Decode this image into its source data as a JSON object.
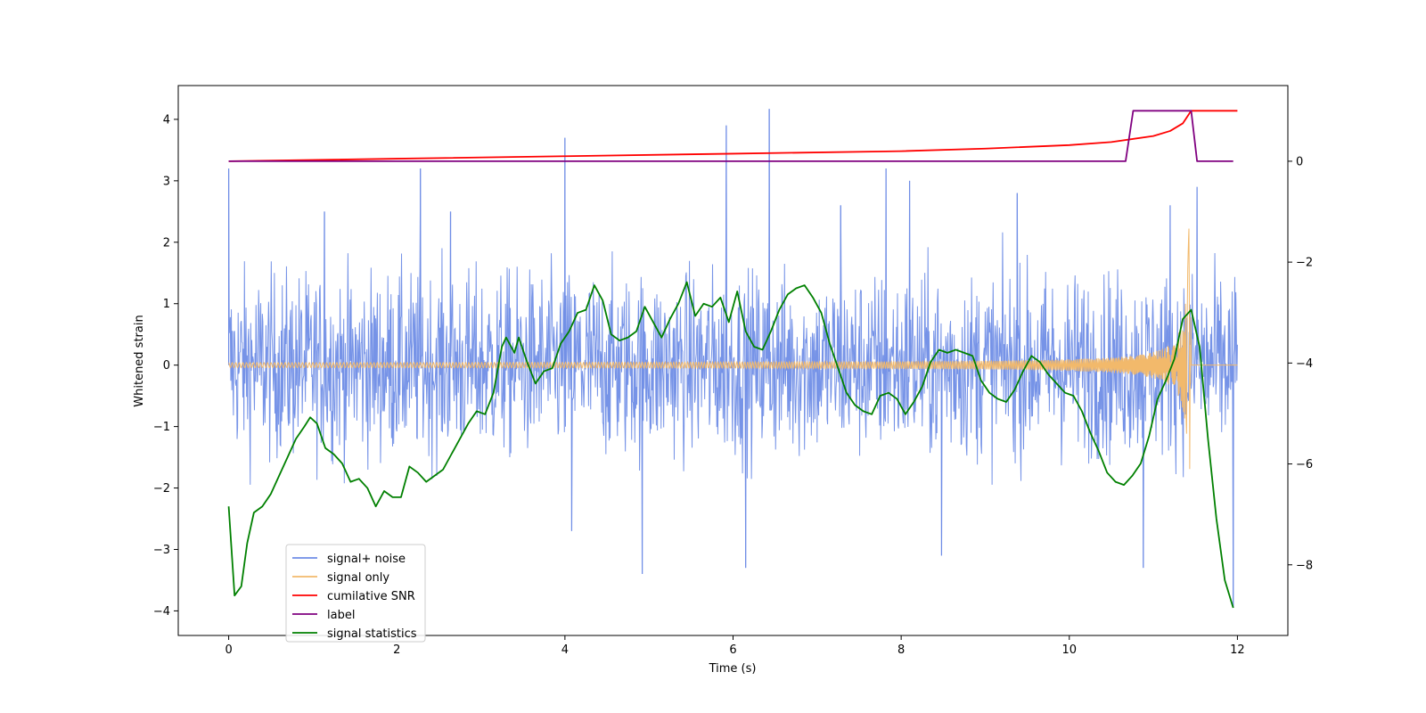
{
  "chart_data": {
    "type": "line",
    "title": "",
    "xlabel": "Time (s)",
    "ylabel": "Whitened strain",
    "y2label": "",
    "xlim": [
      -0.6,
      12.6
    ],
    "ylim": [
      -4.4,
      4.55
    ],
    "y2lim": [
      -9.4,
      1.5
    ],
    "xticks": [
      0,
      2,
      4,
      6,
      8,
      10,
      12
    ],
    "yticks": [
      -4,
      -3,
      -2,
      -1,
      0,
      1,
      2,
      3,
      4
    ],
    "y2ticks": [
      -8,
      -6,
      -4,
      -2,
      0
    ],
    "grid": false,
    "legend_position": "lower-left",
    "series": [
      {
        "name": "signal+ noise",
        "color": "#6f8de6",
        "axis": "left",
        "style": "noise band approx. ±1.9 with spikes",
        "spikes": [
          [
            0.0,
            3.2
          ],
          [
            1.14,
            2.5
          ],
          [
            2.28,
            3.2
          ],
          [
            2.64,
            2.5
          ],
          [
            4.0,
            3.7
          ],
          [
            4.08,
            -2.7
          ],
          [
            4.92,
            -3.4
          ],
          [
            5.92,
            3.9
          ],
          [
            6.15,
            -3.3
          ],
          [
            6.43,
            4.17
          ],
          [
            7.28,
            2.6
          ],
          [
            7.82,
            3.2
          ],
          [
            8.1,
            3.0
          ],
          [
            8.48,
            -3.1
          ],
          [
            9.38,
            2.8
          ],
          [
            10.88,
            -3.3
          ],
          [
            11.2,
            2.6
          ],
          [
            11.52,
            2.9
          ],
          [
            11.95,
            -3.95
          ]
        ],
        "points": [
          [
            0.0,
            3.2
          ],
          [
            1.14,
            2.5
          ],
          [
            2.28,
            3.2
          ],
          [
            2.64,
            2.5
          ],
          [
            4.0,
            3.7
          ],
          [
            4.08,
            -2.7
          ],
          [
            4.92,
            -3.4
          ],
          [
            5.92,
            3.9
          ],
          [
            6.15,
            -3.3
          ],
          [
            6.43,
            4.17
          ],
          [
            7.28,
            2.6
          ],
          [
            7.82,
            3.2
          ],
          [
            8.1,
            3.0
          ],
          [
            8.48,
            -3.1
          ],
          [
            9.38,
            2.8
          ],
          [
            10.88,
            -3.3
          ],
          [
            11.2,
            2.6
          ],
          [
            11.52,
            2.9
          ],
          [
            11.95,
            -3.95
          ]
        ]
      },
      {
        "name": "signal only",
        "color": "#f2b96b",
        "axis": "left",
        "style": "chirp oscillation growing to ±2.3 at t≈11.45 then flat 0",
        "points": [
          [
            0.0,
            0.0
          ],
          [
            8.0,
            0.08
          ],
          [
            10.0,
            0.2
          ],
          [
            11.0,
            0.8
          ],
          [
            11.4,
            2.3
          ],
          [
            11.45,
            0.0
          ],
          [
            12.0,
            0.0
          ]
        ]
      },
      {
        "name": "cumilative SNR",
        "color": "#ff0000",
        "axis": "right",
        "points": [
          [
            0.0,
            0.0
          ],
          [
            2.0,
            0.05
          ],
          [
            4.0,
            0.1
          ],
          [
            6.0,
            0.15
          ],
          [
            8.0,
            0.2
          ],
          [
            9.0,
            0.25
          ],
          [
            10.0,
            0.32
          ],
          [
            10.5,
            0.38
          ],
          [
            11.0,
            0.5
          ],
          [
            11.2,
            0.6
          ],
          [
            11.35,
            0.75
          ],
          [
            11.45,
            1.0
          ],
          [
            12.0,
            1.0
          ]
        ]
      },
      {
        "name": "label",
        "color": "#800080",
        "axis": "right",
        "points": [
          [
            0.0,
            0.0
          ],
          [
            10.67,
            0.0
          ],
          [
            10.76,
            1.0
          ],
          [
            11.45,
            1.0
          ],
          [
            11.52,
            0.0
          ],
          [
            11.95,
            0.0
          ]
        ]
      },
      {
        "name": "signal statistics",
        "color": "#008000",
        "axis": "left",
        "points": [
          [
            0.0,
            -2.3
          ],
          [
            0.07,
            -3.75
          ],
          [
            0.15,
            -3.6
          ],
          [
            0.22,
            -2.9
          ],
          [
            0.3,
            -2.4
          ],
          [
            0.4,
            -2.3
          ],
          [
            0.5,
            -2.1
          ],
          [
            0.6,
            -1.8
          ],
          [
            0.7,
            -1.5
          ],
          [
            0.8,
            -1.2
          ],
          [
            0.9,
            -1.0
          ],
          [
            0.97,
            -0.85
          ],
          [
            1.05,
            -0.95
          ],
          [
            1.15,
            -1.35
          ],
          [
            1.25,
            -1.45
          ],
          [
            1.35,
            -1.6
          ],
          [
            1.45,
            -1.9
          ],
          [
            1.55,
            -1.85
          ],
          [
            1.65,
            -2.0
          ],
          [
            1.75,
            -2.3
          ],
          [
            1.85,
            -2.05
          ],
          [
            1.95,
            -2.15
          ],
          [
            2.05,
            -2.15
          ],
          [
            2.15,
            -1.65
          ],
          [
            2.25,
            -1.75
          ],
          [
            2.35,
            -1.9
          ],
          [
            2.45,
            -1.8
          ],
          [
            2.55,
            -1.7
          ],
          [
            2.65,
            -1.45
          ],
          [
            2.75,
            -1.2
          ],
          [
            2.85,
            -0.95
          ],
          [
            2.95,
            -0.75
          ],
          [
            3.05,
            -0.8
          ],
          [
            3.15,
            -0.45
          ],
          [
            3.25,
            0.3
          ],
          [
            3.3,
            0.45
          ],
          [
            3.4,
            0.2
          ],
          [
            3.45,
            0.45
          ],
          [
            3.55,
            0.05
          ],
          [
            3.65,
            -0.3
          ],
          [
            3.75,
            -0.1
          ],
          [
            3.85,
            -0.05
          ],
          [
            3.95,
            0.35
          ],
          [
            4.05,
            0.55
          ],
          [
            4.15,
            0.85
          ],
          [
            4.25,
            0.9
          ],
          [
            4.35,
            1.3
          ],
          [
            4.45,
            1.05
          ],
          [
            4.55,
            0.5
          ],
          [
            4.65,
            0.4
          ],
          [
            4.75,
            0.45
          ],
          [
            4.85,
            0.55
          ],
          [
            4.95,
            0.95
          ],
          [
            5.05,
            0.7
          ],
          [
            5.15,
            0.45
          ],
          [
            5.25,
            0.75
          ],
          [
            5.35,
            1.0
          ],
          [
            5.45,
            1.35
          ],
          [
            5.55,
            0.8
          ],
          [
            5.65,
            1.0
          ],
          [
            5.75,
            0.95
          ],
          [
            5.85,
            1.1
          ],
          [
            5.95,
            0.7
          ],
          [
            6.05,
            1.2
          ],
          [
            6.15,
            0.55
          ],
          [
            6.25,
            0.3
          ],
          [
            6.35,
            0.25
          ],
          [
            6.45,
            0.55
          ],
          [
            6.55,
            0.9
          ],
          [
            6.65,
            1.15
          ],
          [
            6.75,
            1.25
          ],
          [
            6.85,
            1.3
          ],
          [
            6.95,
            1.1
          ],
          [
            7.05,
            0.85
          ],
          [
            7.15,
            0.35
          ],
          [
            7.25,
            -0.05
          ],
          [
            7.35,
            -0.45
          ],
          [
            7.45,
            -0.65
          ],
          [
            7.55,
            -0.75
          ],
          [
            7.65,
            -0.8
          ],
          [
            7.75,
            -0.5
          ],
          [
            7.85,
            -0.45
          ],
          [
            7.95,
            -0.55
          ],
          [
            8.05,
            -0.8
          ],
          [
            8.15,
            -0.6
          ],
          [
            8.25,
            -0.35
          ],
          [
            8.35,
            0.05
          ],
          [
            8.45,
            0.25
          ],
          [
            8.55,
            0.2
          ],
          [
            8.65,
            0.25
          ],
          [
            8.75,
            0.2
          ],
          [
            8.85,
            0.15
          ],
          [
            8.95,
            -0.25
          ],
          [
            9.05,
            -0.45
          ],
          [
            9.15,
            -0.55
          ],
          [
            9.25,
            -0.6
          ],
          [
            9.35,
            -0.4
          ],
          [
            9.45,
            -0.1
          ],
          [
            9.55,
            0.15
          ],
          [
            9.65,
            0.05
          ],
          [
            9.75,
            -0.15
          ],
          [
            9.85,
            -0.3
          ],
          [
            9.95,
            -0.45
          ],
          [
            10.05,
            -0.5
          ],
          [
            10.15,
            -0.75
          ],
          [
            10.25,
            -1.1
          ],
          [
            10.35,
            -1.4
          ],
          [
            10.45,
            -1.75
          ],
          [
            10.55,
            -1.9
          ],
          [
            10.65,
            -1.95
          ],
          [
            10.75,
            -1.8
          ],
          [
            10.85,
            -1.6
          ],
          [
            10.95,
            -1.15
          ],
          [
            11.05,
            -0.55
          ],
          [
            11.15,
            -0.25
          ],
          [
            11.25,
            0.1
          ],
          [
            11.35,
            0.75
          ],
          [
            11.45,
            0.9
          ],
          [
            11.55,
            0.3
          ],
          [
            11.65,
            -1.2
          ],
          [
            11.75,
            -2.5
          ],
          [
            11.85,
            -3.5
          ],
          [
            11.95,
            -3.95
          ]
        ]
      }
    ]
  }
}
